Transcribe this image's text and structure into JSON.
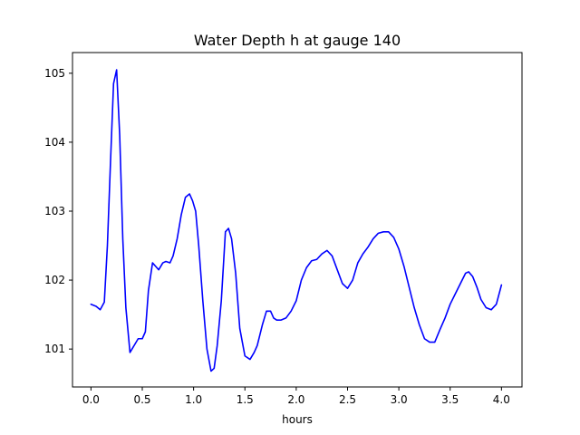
{
  "chart_data": {
    "type": "line",
    "title": "Water Depth h at gauge 140",
    "xlabel": "hours",
    "ylabel": "",
    "xlim": [
      -0.18,
      4.2
    ],
    "ylim": [
      100.45,
      105.3
    ],
    "xticks": [
      0.0,
      0.5,
      1.0,
      1.5,
      2.0,
      2.5,
      3.0,
      3.5,
      4.0
    ],
    "xtick_labels": [
      "0.0",
      "0.5",
      "1.0",
      "1.5",
      "2.0",
      "2.5",
      "3.0",
      "3.5",
      "4.0"
    ],
    "yticks": [
      101,
      102,
      103,
      104,
      105
    ],
    "ytick_labels": [
      "101",
      "102",
      "103",
      "104",
      "105"
    ],
    "grid": false,
    "series": [
      {
        "name": "",
        "color": "#0000ff",
        "x": [
          0.0,
          0.05,
          0.09,
          0.13,
          0.16,
          0.19,
          0.22,
          0.25,
          0.28,
          0.31,
          0.34,
          0.38,
          0.42,
          0.46,
          0.5,
          0.53,
          0.56,
          0.6,
          0.63,
          0.66,
          0.7,
          0.73,
          0.77,
          0.8,
          0.84,
          0.88,
          0.92,
          0.96,
          0.99,
          1.02,
          1.05,
          1.09,
          1.13,
          1.17,
          1.2,
          1.23,
          1.27,
          1.31,
          1.34,
          1.37,
          1.41,
          1.45,
          1.5,
          1.55,
          1.59,
          1.62,
          1.67,
          1.71,
          1.75,
          1.78,
          1.81,
          1.85,
          1.9,
          1.95,
          2.0,
          2.05,
          2.1,
          2.15,
          2.2,
          2.25,
          2.3,
          2.35,
          2.4,
          2.45,
          2.5,
          2.55,
          2.6,
          2.65,
          2.7,
          2.75,
          2.8,
          2.85,
          2.9,
          2.95,
          3.0,
          3.05,
          3.1,
          3.15,
          3.2,
          3.25,
          3.3,
          3.35,
          3.4,
          3.45,
          3.5,
          3.55,
          3.6,
          3.65,
          3.68,
          3.72,
          3.76,
          3.8,
          3.85,
          3.9,
          3.95,
          4.0
        ],
        "y": [
          101.65,
          101.62,
          101.57,
          101.68,
          102.5,
          103.7,
          104.85,
          105.05,
          104.1,
          102.6,
          101.6,
          100.95,
          101.05,
          101.15,
          101.15,
          101.25,
          101.85,
          102.25,
          102.2,
          102.15,
          102.25,
          102.27,
          102.25,
          102.35,
          102.6,
          102.95,
          103.2,
          103.25,
          103.15,
          103.0,
          102.5,
          101.7,
          101.0,
          100.68,
          100.72,
          101.05,
          101.7,
          102.7,
          102.75,
          102.6,
          102.1,
          101.3,
          100.9,
          100.85,
          100.95,
          101.05,
          101.35,
          101.55,
          101.55,
          101.45,
          101.42,
          101.42,
          101.45,
          101.55,
          101.7,
          102.0,
          102.18,
          102.28,
          102.3,
          102.38,
          102.43,
          102.35,
          102.15,
          101.95,
          101.88,
          102.0,
          102.25,
          102.38,
          102.48,
          102.6,
          102.68,
          102.7,
          102.7,
          102.62,
          102.45,
          102.2,
          101.9,
          101.6,
          101.35,
          101.15,
          101.1,
          101.1,
          101.28,
          101.45,
          101.65,
          101.8,
          101.95,
          102.1,
          102.12,
          102.05,
          101.9,
          101.72,
          101.6,
          101.57,
          101.65,
          101.93
        ]
      }
    ]
  }
}
